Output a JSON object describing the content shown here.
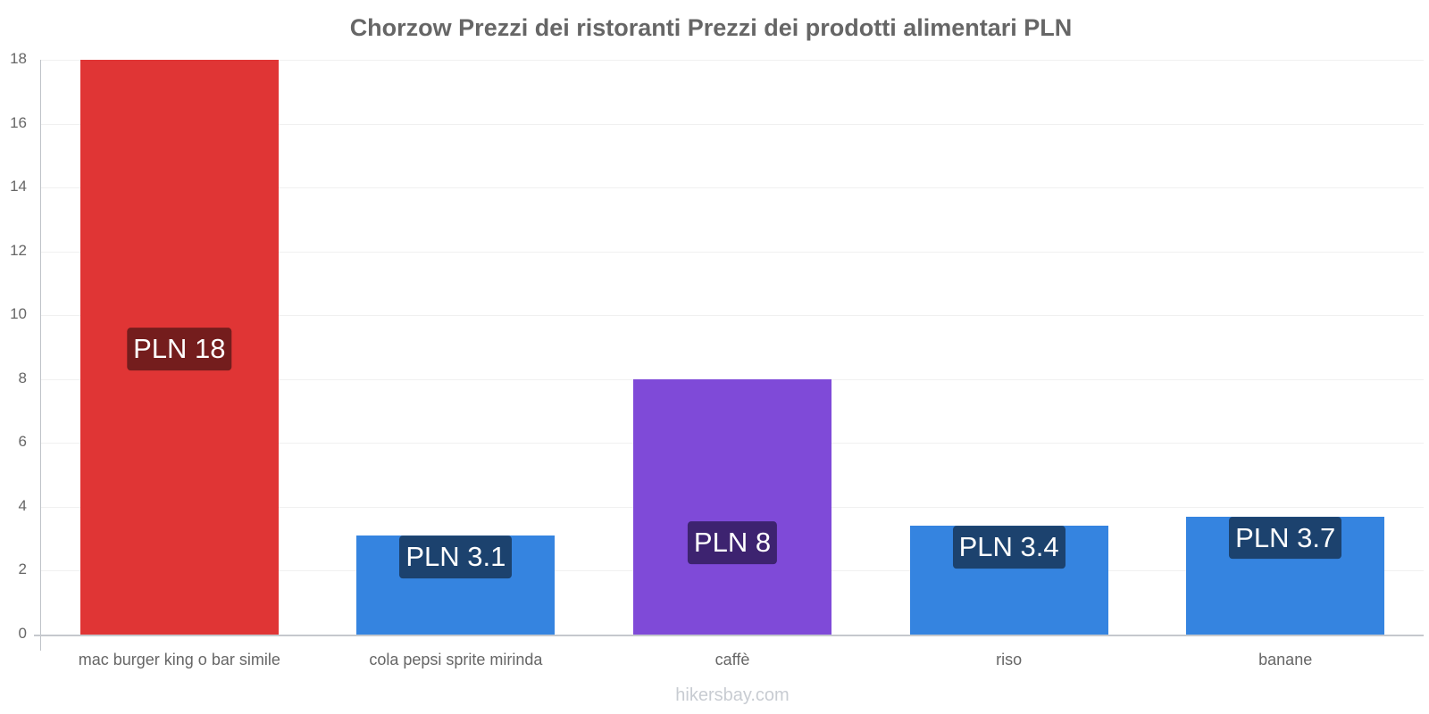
{
  "chart_data": {
    "type": "bar",
    "title": "Chorzow Prezzi dei ristoranti Prezzi dei prodotti alimentari PLN",
    "xlabel": "",
    "ylabel": "",
    "ylim": [
      0,
      18
    ],
    "yticks": [
      "0",
      "2",
      "4",
      "6",
      "8",
      "10",
      "12",
      "14",
      "16",
      "18"
    ],
    "grid": true,
    "legend": "none",
    "categories": [
      "mac burger king o bar simile",
      "cola pepsi sprite mirinda",
      "caffè",
      "riso",
      "banane"
    ],
    "values": [
      18,
      3.1,
      8,
      3.4,
      3.7
    ],
    "data_labels": [
      "PLN 18",
      "PLN 3.1",
      "PLN 8",
      "PLN 3.4",
      "PLN 3.7"
    ],
    "colors": [
      "#e03535",
      "#3584e0",
      "#7f4ad8",
      "#3584e0",
      "#3584e0"
    ],
    "label_colors": [
      "#741d1d",
      "#1c426e",
      "#3d2370",
      "#1c426e",
      "#1c426e"
    ],
    "watermark": "hikersbay.com"
  }
}
